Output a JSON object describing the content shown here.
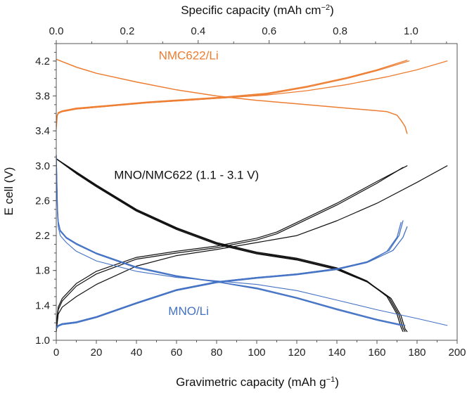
{
  "chart_data": {
    "type": "line",
    "xlabel": "Gravimetric capacity (mAh g",
    "xlabel_sup": "−1",
    "xlabel_end": ")",
    "x2label": "Specific capacity (mAh cm",
    "x2label_sup": "−2",
    "x2label_end": ")",
    "ylabel": "E cell (V)",
    "xlim": [
      0,
      200
    ],
    "ylim": [
      1.0,
      4.4
    ],
    "x2lim": [
      0,
      1.13
    ],
    "xticks": [
      "0",
      "20",
      "40",
      "60",
      "80",
      "100",
      "120",
      "140",
      "160",
      "180",
      "200"
    ],
    "yticks": [
      "1.0",
      "1.4",
      "1.8",
      "2.2",
      "2.6",
      "3.0",
      "3.4",
      "3.8",
      "4.2"
    ],
    "x2ticks": [
      "0.0",
      "0.2",
      "0.4",
      "0.6",
      "0.8",
      "1.0"
    ],
    "annotations": [
      {
        "text": "NMC622/Li",
        "x": 66,
        "y": 4.22,
        "color": "#ED7D31"
      },
      {
        "text": "MNO/NMC622 (1.1 - 3.1 V)",
        "x": 65,
        "y": 2.85,
        "color": "#111111"
      },
      {
        "text": "MNO/Li",
        "x": 66,
        "y": 1.29,
        "color": "#4472C4"
      }
    ],
    "series": [
      {
        "name": "NMC622/Li charge 1",
        "color": "#ED7D31",
        "width": 1.3,
        "points": [
          [
            0,
            3.42
          ],
          [
            0.5,
            3.57
          ],
          [
            1,
            3.6
          ],
          [
            3,
            3.62
          ],
          [
            10,
            3.65
          ],
          [
            25,
            3.68
          ],
          [
            45,
            3.72
          ],
          [
            65,
            3.75
          ],
          [
            85,
            3.78
          ],
          [
            105,
            3.82
          ],
          [
            125,
            3.9
          ],
          [
            145,
            4.0
          ],
          [
            160,
            4.09
          ],
          [
            176,
            4.2
          ]
        ]
      },
      {
        "name": "NMC622/Li charge 2",
        "color": "#ED7D31",
        "width": 1.3,
        "points": [
          [
            0,
            3.45
          ],
          [
            0.5,
            3.58
          ],
          [
            1,
            3.61
          ],
          [
            3,
            3.63
          ],
          [
            10,
            3.66
          ],
          [
            25,
            3.69
          ],
          [
            45,
            3.73
          ],
          [
            65,
            3.76
          ],
          [
            85,
            3.79
          ],
          [
            105,
            3.83
          ],
          [
            125,
            3.91
          ],
          [
            145,
            4.01
          ],
          [
            160,
            4.1
          ],
          [
            175,
            4.21
          ]
        ]
      },
      {
        "name": "NMC622/Li charge 3",
        "color": "#ED7D31",
        "width": 1.3,
        "points": [
          [
            0,
            3.46
          ],
          [
            0.5,
            3.58
          ],
          [
            1,
            3.6
          ],
          [
            3,
            3.62
          ],
          [
            10,
            3.65
          ],
          [
            25,
            3.68
          ],
          [
            45,
            3.72
          ],
          [
            65,
            3.75
          ],
          [
            85,
            3.78
          ],
          [
            105,
            3.81
          ],
          [
            125,
            3.86
          ],
          [
            145,
            3.93
          ],
          [
            165,
            4.02
          ],
          [
            180,
            4.1
          ],
          [
            195,
            4.2
          ]
        ]
      },
      {
        "name": "NMC622/Li discharge",
        "color": "#ED7D31",
        "width": 1.5,
        "points": [
          [
            0,
            4.22
          ],
          [
            10,
            4.13
          ],
          [
            20,
            4.06
          ],
          [
            40,
            3.96
          ],
          [
            60,
            3.87
          ],
          [
            80,
            3.8
          ],
          [
            100,
            3.75
          ],
          [
            120,
            3.71
          ],
          [
            140,
            3.67
          ],
          [
            155,
            3.64
          ],
          [
            165,
            3.62
          ],
          [
            170,
            3.58
          ],
          [
            172,
            3.52
          ],
          [
            174,
            3.45
          ],
          [
            175,
            3.37
          ]
        ]
      },
      {
        "name": "MNO/NMC622 charge 1",
        "color": "#111111",
        "width": 1.2,
        "points": [
          [
            0,
            1.1
          ],
          [
            0.5,
            1.25
          ],
          [
            1,
            1.35
          ],
          [
            3,
            1.45
          ],
          [
            10,
            1.62
          ],
          [
            20,
            1.76
          ],
          [
            40,
            1.93
          ],
          [
            60,
            2.0
          ],
          [
            80,
            2.06
          ],
          [
            100,
            2.15
          ],
          [
            110,
            2.22
          ],
          [
            120,
            2.33
          ],
          [
            140,
            2.55
          ],
          [
            160,
            2.8
          ],
          [
            173,
            2.98
          ]
        ]
      },
      {
        "name": "MNO/NMC622 charge 2",
        "color": "#111111",
        "width": 1.2,
        "points": [
          [
            0,
            1.1
          ],
          [
            0.5,
            1.28
          ],
          [
            1,
            1.38
          ],
          [
            3,
            1.48
          ],
          [
            10,
            1.65
          ],
          [
            20,
            1.79
          ],
          [
            40,
            1.95
          ],
          [
            60,
            2.02
          ],
          [
            80,
            2.08
          ],
          [
            100,
            2.17
          ],
          [
            110,
            2.24
          ],
          [
            120,
            2.35
          ],
          [
            140,
            2.57
          ],
          [
            160,
            2.82
          ],
          [
            175,
            3.0
          ]
        ]
      },
      {
        "name": "MNO/NMC622 charge 3",
        "color": "#111111",
        "width": 1.2,
        "points": [
          [
            0,
            1.1
          ],
          [
            0.5,
            1.2
          ],
          [
            1,
            1.3
          ],
          [
            3,
            1.38
          ],
          [
            10,
            1.5
          ],
          [
            20,
            1.64
          ],
          [
            40,
            1.85
          ],
          [
            60,
            1.97
          ],
          [
            80,
            2.04
          ],
          [
            100,
            2.12
          ],
          [
            120,
            2.2
          ],
          [
            140,
            2.37
          ],
          [
            160,
            2.57
          ],
          [
            180,
            2.81
          ],
          [
            195,
            3.0
          ]
        ]
      },
      {
        "name": "MNO/NMC622 discharge 1",
        "color": "#111111",
        "width": 1.3,
        "points": [
          [
            0,
            3.08
          ],
          [
            10,
            2.93
          ],
          [
            20,
            2.78
          ],
          [
            40,
            2.5
          ],
          [
            60,
            2.29
          ],
          [
            80,
            2.12
          ],
          [
            100,
            2.01
          ],
          [
            120,
            1.94
          ],
          [
            140,
            1.83
          ],
          [
            155,
            1.68
          ],
          [
            165,
            1.5
          ],
          [
            170,
            1.3
          ],
          [
            172,
            1.15
          ],
          [
            173,
            1.1
          ]
        ]
      },
      {
        "name": "MNO/NMC622 discharge 2",
        "color": "#111111",
        "width": 1.3,
        "points": [
          [
            0,
            3.08
          ],
          [
            10,
            2.92
          ],
          [
            20,
            2.77
          ],
          [
            40,
            2.49
          ],
          [
            60,
            2.28
          ],
          [
            80,
            2.11
          ],
          [
            100,
            2.0
          ],
          [
            120,
            1.93
          ],
          [
            140,
            1.82
          ],
          [
            155,
            1.67
          ],
          [
            166,
            1.49
          ],
          [
            171,
            1.29
          ],
          [
            173,
            1.14
          ],
          [
            174,
            1.1
          ]
        ]
      },
      {
        "name": "MNO/NMC622 discharge 3",
        "color": "#111111",
        "width": 1.3,
        "points": [
          [
            0,
            3.08
          ],
          [
            10,
            2.91
          ],
          [
            20,
            2.76
          ],
          [
            40,
            2.48
          ],
          [
            60,
            2.27
          ],
          [
            80,
            2.1
          ],
          [
            100,
            1.99
          ],
          [
            120,
            1.92
          ],
          [
            140,
            1.81
          ],
          [
            156,
            1.66
          ],
          [
            167,
            1.48
          ],
          [
            172,
            1.28
          ],
          [
            174,
            1.13
          ],
          [
            175,
            1.1
          ]
        ]
      },
      {
        "name": "MNO/Li charge 1",
        "color": "#4472C4",
        "width": 1.3,
        "points": [
          [
            0,
            1.13
          ],
          [
            1,
            1.16
          ],
          [
            3,
            1.18
          ],
          [
            10,
            1.2
          ],
          [
            20,
            1.26
          ],
          [
            40,
            1.42
          ],
          [
            60,
            1.57
          ],
          [
            80,
            1.66
          ],
          [
            100,
            1.71
          ],
          [
            120,
            1.75
          ],
          [
            140,
            1.81
          ],
          [
            155,
            1.89
          ],
          [
            165,
            2.02
          ],
          [
            170,
            2.18
          ],
          [
            172,
            2.35
          ]
        ]
      },
      {
        "name": "MNO/Li charge 2",
        "color": "#4472C4",
        "width": 1.3,
        "points": [
          [
            0,
            1.14
          ],
          [
            1,
            1.17
          ],
          [
            3,
            1.19
          ],
          [
            10,
            1.21
          ],
          [
            20,
            1.27
          ],
          [
            40,
            1.43
          ],
          [
            60,
            1.58
          ],
          [
            80,
            1.67
          ],
          [
            100,
            1.72
          ],
          [
            120,
            1.76
          ],
          [
            140,
            1.82
          ],
          [
            155,
            1.9
          ],
          [
            166,
            2.03
          ],
          [
            171,
            2.2
          ],
          [
            173,
            2.37
          ]
        ]
      },
      {
        "name": "MNO/Li charge 3",
        "color": "#4472C4",
        "width": 1.3,
        "points": [
          [
            0,
            1.15
          ],
          [
            1,
            1.17
          ],
          [
            3,
            1.19
          ],
          [
            10,
            1.21
          ],
          [
            20,
            1.27
          ],
          [
            40,
            1.43
          ],
          [
            60,
            1.58
          ],
          [
            80,
            1.67
          ],
          [
            100,
            1.72
          ],
          [
            120,
            1.76
          ],
          [
            140,
            1.82
          ],
          [
            156,
            1.9
          ],
          [
            168,
            2.03
          ],
          [
            173,
            2.18
          ],
          [
            175,
            2.3
          ]
        ]
      },
      {
        "name": "MNO/Li discharge 1",
        "color": "#4472C4",
        "width": 1.3,
        "points": [
          [
            0,
            3.12
          ],
          [
            0.3,
            2.8
          ],
          [
            0.6,
            2.5
          ],
          [
            1,
            2.35
          ],
          [
            2,
            2.25
          ],
          [
            5,
            2.17
          ],
          [
            10,
            2.1
          ],
          [
            20,
            1.99
          ],
          [
            40,
            1.83
          ],
          [
            60,
            1.73
          ],
          [
            80,
            1.67
          ],
          [
            100,
            1.59
          ],
          [
            120,
            1.48
          ],
          [
            140,
            1.35
          ],
          [
            160,
            1.23
          ],
          [
            172,
            1.17
          ]
        ]
      },
      {
        "name": "MNO/Li discharge 2",
        "color": "#4472C4",
        "width": 1.3,
        "points": [
          [
            0,
            3.12
          ],
          [
            0.3,
            2.8
          ],
          [
            0.6,
            2.5
          ],
          [
            1,
            2.36
          ],
          [
            2,
            2.26
          ],
          [
            5,
            2.18
          ],
          [
            10,
            2.11
          ],
          [
            20,
            2.0
          ],
          [
            40,
            1.84
          ],
          [
            60,
            1.74
          ],
          [
            80,
            1.67
          ],
          [
            100,
            1.6
          ],
          [
            120,
            1.49
          ],
          [
            140,
            1.36
          ],
          [
            160,
            1.24
          ],
          [
            174,
            1.17
          ]
        ]
      },
      {
        "name": "MNO/Li discharge 3",
        "color": "#4472C4",
        "width": 1.1,
        "points": [
          [
            0,
            3.12
          ],
          [
            0.3,
            2.75
          ],
          [
            0.6,
            2.45
          ],
          [
            1,
            2.3
          ],
          [
            2,
            2.2
          ],
          [
            5,
            2.12
          ],
          [
            10,
            2.02
          ],
          [
            20,
            1.91
          ],
          [
            40,
            1.79
          ],
          [
            60,
            1.72
          ],
          [
            80,
            1.68
          ],
          [
            100,
            1.64
          ],
          [
            120,
            1.57
          ],
          [
            140,
            1.46
          ],
          [
            160,
            1.35
          ],
          [
            180,
            1.25
          ],
          [
            195,
            1.17
          ]
        ]
      }
    ]
  }
}
